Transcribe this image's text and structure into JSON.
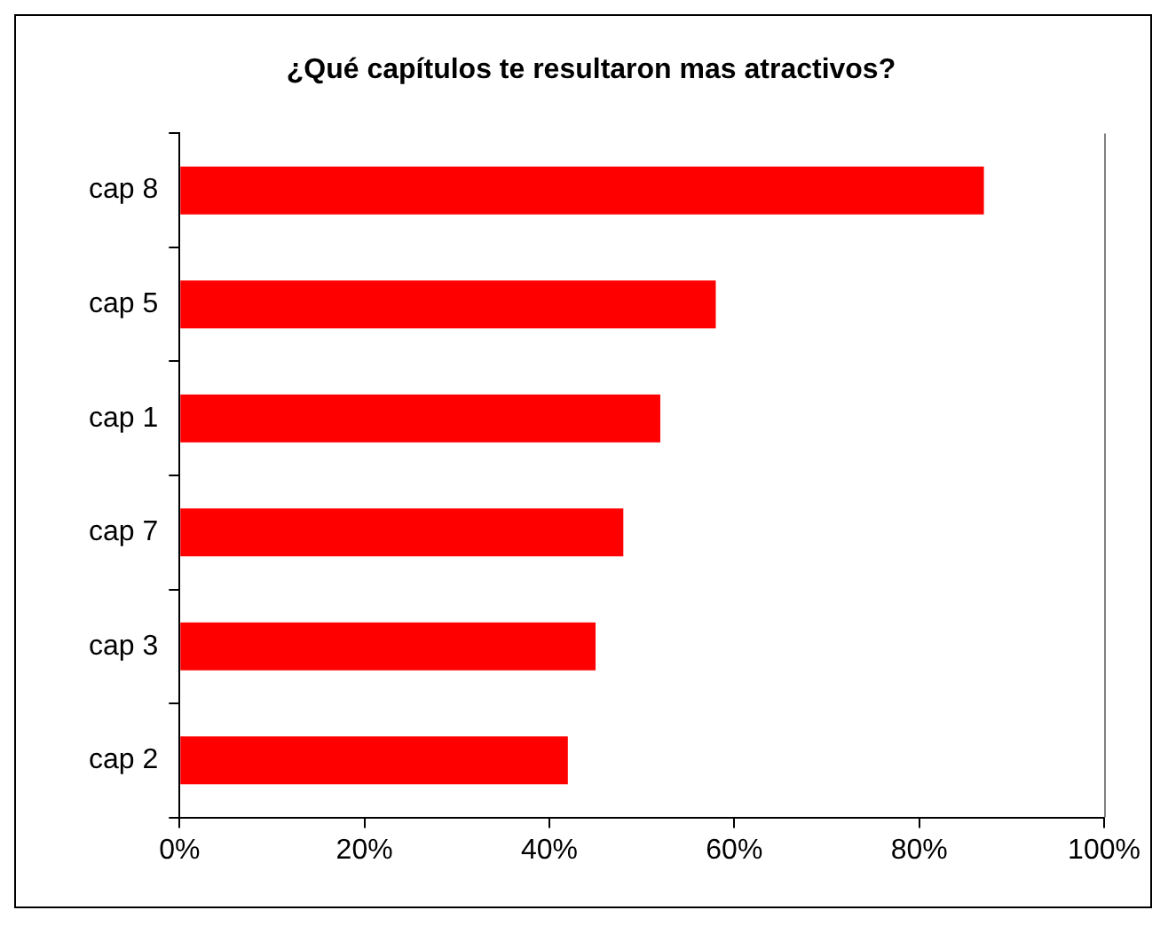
{
  "chart_data": {
    "type": "bar",
    "orientation": "horizontal",
    "title": "¿Qué capítulos te resultaron mas atractivos?",
    "categories": [
      "cap 8",
      "cap 5",
      "cap 1",
      "cap 7",
      "cap 3",
      "cap 2"
    ],
    "values": [
      87,
      58,
      52,
      48,
      45,
      42
    ],
    "color": "#ff0000",
    "xlim": [
      0,
      100
    ],
    "xticks": [
      {
        "value": 0,
        "label": "0%"
      },
      {
        "value": 20,
        "label": "20%"
      },
      {
        "value": 40,
        "label": "40%"
      },
      {
        "value": 60,
        "label": "60%"
      },
      {
        "value": 80,
        "label": "80%"
      },
      {
        "value": 100,
        "label": "100%"
      }
    ],
    "grid": false,
    "legend": false
  }
}
